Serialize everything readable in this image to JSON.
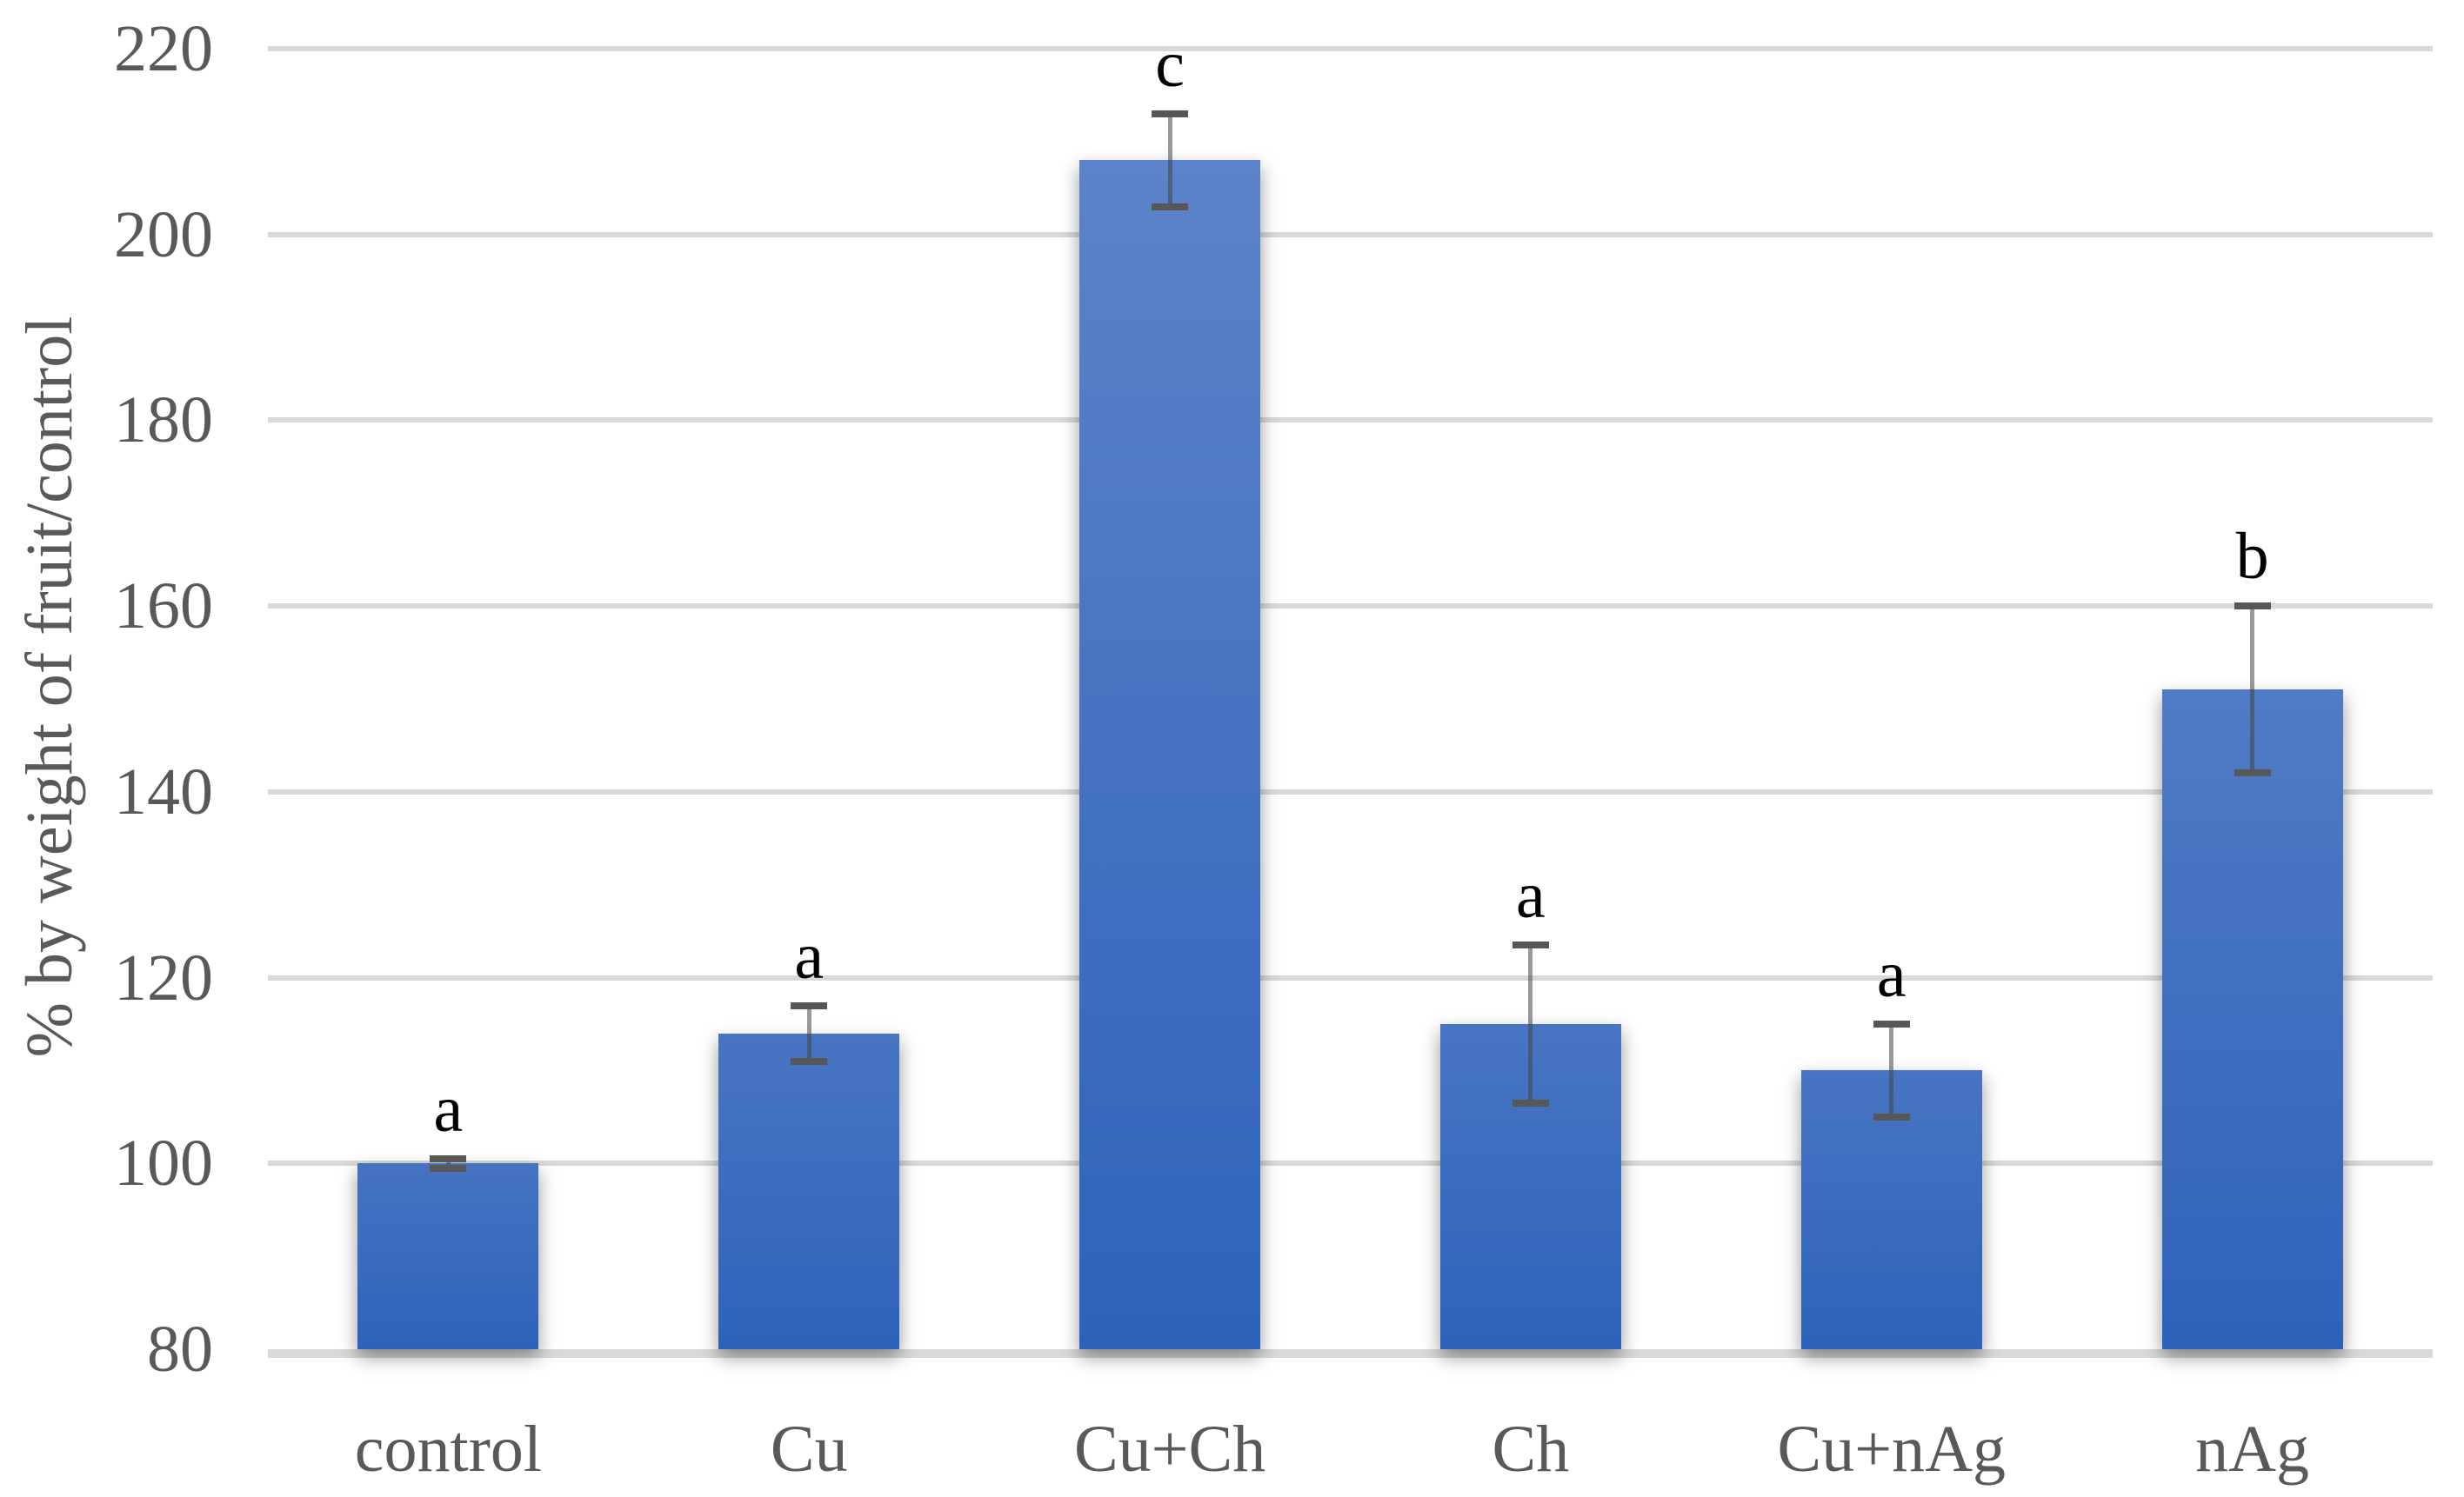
{
  "chart_data": {
    "type": "bar",
    "title": "",
    "xlabel": "",
    "ylabel": "% by weight of fruit/control",
    "categories": [
      "control",
      "Cu",
      "Cu+Ch",
      "Ch",
      "Cu+nAg",
      "nAg"
    ],
    "values": [
      100,
      114,
      208,
      115,
      110,
      151
    ],
    "error_bars": [
      0.5,
      3,
      5,
      8.5,
      5,
      9
    ],
    "significance_letters": [
      "a",
      "a",
      "c",
      "a",
      "a",
      "b"
    ],
    "ylim": [
      80,
      220
    ],
    "yticks": [
      80,
      100,
      120,
      140,
      160,
      180,
      200,
      220
    ],
    "grid": "horizontal",
    "legend_position": "none",
    "colors": {
      "bar_gradient_light": "#5E85CA",
      "bar_gradient_dark": "#2E62BA",
      "gridline": "#D9D9D9",
      "axis_line": "#D9D9D9",
      "tick_label_text": "#595959",
      "category_label_text": "#595959",
      "significance_letter_text": "#000000",
      "error_bar": "#575757",
      "background": "#FFFFFF"
    }
  }
}
